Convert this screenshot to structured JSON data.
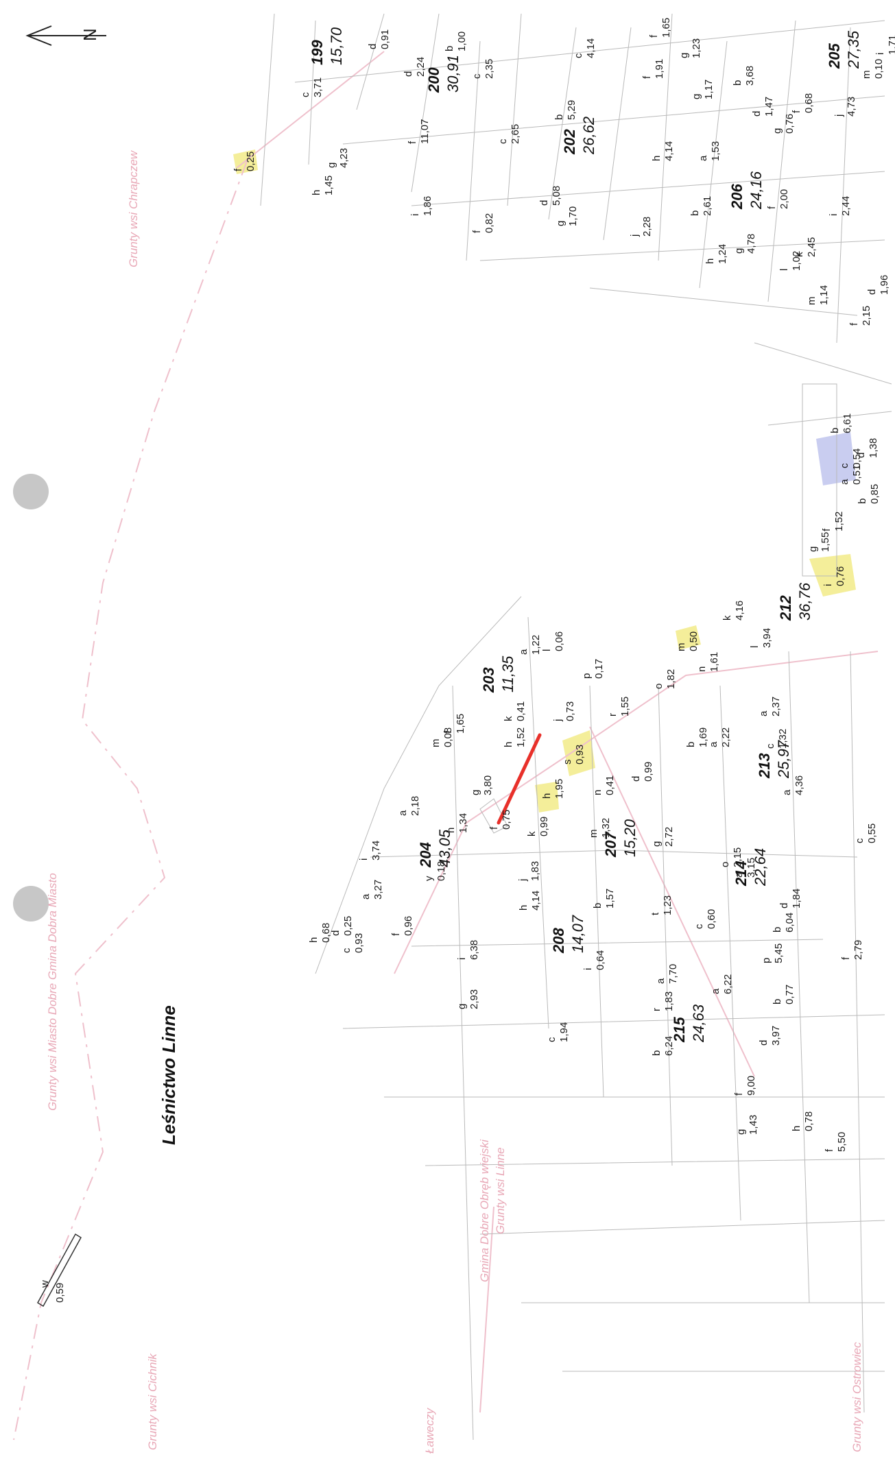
{
  "forestry_label": "Leśnictwo Linne",
  "north_arrow_label": "N",
  "neighbour_labels": [
    "Grunty wsi Chrapczew",
    "Grunty wsi Miasto Dobre   Gmina Dobra Miasto",
    "Gmina Dobre Obręb wiejski",
    "Grunty wsi Linne",
    "Grunty wsi Cichnik",
    "Grunty wsi Ostrowiec",
    "Ławeczy"
  ],
  "scale_bar": {
    "letter": "w",
    "value": "0,59"
  },
  "highlight_color": "#f4ee9a",
  "blue_patch_color": "#c9cdf0",
  "segment_color": "#e8302a",
  "parcels": [
    {
      "number": "199",
      "area": "15,70"
    },
    {
      "number": "200",
      "area": "30,91"
    },
    {
      "number": "202",
      "area": "26,62"
    },
    {
      "number": "203",
      "area": "11,35"
    },
    {
      "number": "204",
      "area": "43,05"
    },
    {
      "number": "205",
      "area": "27,35"
    },
    {
      "number": "206",
      "area": "24,16"
    },
    {
      "number": "207",
      "area": "15,20"
    },
    {
      "number": "208",
      "area": "14,07"
    },
    {
      "number": "212",
      "area": "36,76"
    },
    {
      "number": "213",
      "area": "25,97"
    },
    {
      "number": "214",
      "area": "22,64"
    },
    {
      "number": "215",
      "area": "24,63"
    }
  ],
  "subdivisions": [
    {
      "letter": "c",
      "value": "3,71"
    },
    {
      "letter": "d",
      "value": "0,91"
    },
    {
      "letter": "d",
      "value": "2,24"
    },
    {
      "letter": "b",
      "value": "1,00"
    },
    {
      "letter": "c",
      "value": "2,35"
    },
    {
      "letter": "c",
      "value": "4,14"
    },
    {
      "letter": "f",
      "value": "1,65"
    },
    {
      "letter": "g",
      "value": "1,23"
    },
    {
      "letter": "f",
      "value": "1,91"
    },
    {
      "letter": "g",
      "value": "1,17"
    },
    {
      "letter": "b",
      "value": "3,68"
    },
    {
      "letter": "m",
      "value": "0,10"
    },
    {
      "letter": "i",
      "value": "1,71"
    },
    {
      "letter": "f",
      "value": "11,07"
    },
    {
      "letter": "c",
      "value": "2,65"
    },
    {
      "letter": "b",
      "value": "5,29"
    },
    {
      "letter": "d",
      "value": "1,47"
    },
    {
      "letter": "g",
      "value": "0,76"
    },
    {
      "letter": "f",
      "value": "0,68"
    },
    {
      "letter": "j",
      "value": "4,73"
    },
    {
      "letter": "g",
      "value": "4,23"
    },
    {
      "letter": "f",
      "value": "0,25"
    },
    {
      "letter": "h",
      "value": "1,45"
    },
    {
      "letter": "i",
      "value": "1,86"
    },
    {
      "letter": "d",
      "value": "5,08"
    },
    {
      "letter": "h",
      "value": "4,14"
    },
    {
      "letter": "a",
      "value": "1,53"
    },
    {
      "letter": "f",
      "value": "0,82"
    },
    {
      "letter": "g",
      "value": "1,70"
    },
    {
      "letter": "j",
      "value": "2,28"
    },
    {
      "letter": "b",
      "value": "2,61"
    },
    {
      "letter": "f",
      "value": "2,00"
    },
    {
      "letter": "i",
      "value": "2,44"
    },
    {
      "letter": "h",
      "value": "1,24"
    },
    {
      "letter": "g",
      "value": "4,78"
    },
    {
      "letter": "l",
      "value": "1,02"
    },
    {
      "letter": "k",
      "value": "2,45"
    },
    {
      "letter": "m",
      "value": "1,14"
    },
    {
      "letter": "f",
      "value": "2,15"
    },
    {
      "letter": "d",
      "value": "1,96"
    },
    {
      "letter": "b",
      "value": "6,61"
    },
    {
      "letter": "a",
      "value": "0,51"
    },
    {
      "letter": "c",
      "value": "0,54"
    },
    {
      "letter": "d",
      "value": "1,38"
    },
    {
      "letter": "b",
      "value": "0,85"
    },
    {
      "letter": "g",
      "value": "1,55"
    },
    {
      "letter": "f",
      "value": "1,52"
    },
    {
      "letter": "i",
      "value": "0,76"
    },
    {
      "letter": "k",
      "value": "4,16"
    },
    {
      "letter": "l",
      "value": "3,94"
    },
    {
      "letter": "a",
      "value": "1,22"
    },
    {
      "letter": "l",
      "value": "0,06"
    },
    {
      "letter": "m",
      "value": "0,50"
    },
    {
      "letter": "n",
      "value": "1,61"
    },
    {
      "letter": "o",
      "value": "1,82"
    },
    {
      "letter": "p",
      "value": "0,17"
    },
    {
      "letter": "k",
      "value": "0,41"
    },
    {
      "letter": "r",
      "value": "1,55"
    },
    {
      "letter": "m",
      "value": "0,08"
    },
    {
      "letter": "f",
      "value": "1,65"
    },
    {
      "letter": "h",
      "value": "1,52"
    },
    {
      "letter": "j",
      "value": "0,73"
    },
    {
      "letter": "b",
      "value": "1,69"
    },
    {
      "letter": "a",
      "value": "2,22"
    },
    {
      "letter": "a",
      "value": "2,37"
    },
    {
      "letter": "c",
      "value": "1,32"
    },
    {
      "letter": "a",
      "value": "2,18"
    },
    {
      "letter": "g",
      "value": "3,80"
    },
    {
      "letter": "s",
      "value": "0,93"
    },
    {
      "letter": "d",
      "value": "0,99"
    },
    {
      "letter": "a",
      "value": "4,36"
    },
    {
      "letter": "h",
      "value": "1,34"
    },
    {
      "letter": "h",
      "value": "1,95"
    },
    {
      "letter": "k",
      "value": "0,99"
    },
    {
      "letter": "n",
      "value": "0,41"
    },
    {
      "letter": "f",
      "value": "0,75"
    },
    {
      "letter": "m",
      "value": "1,32"
    },
    {
      "letter": "g",
      "value": "2,72"
    },
    {
      "letter": "c",
      "value": "0,55"
    },
    {
      "letter": "i",
      "value": "3,74"
    },
    {
      "letter": "y",
      "value": "0,18"
    },
    {
      "letter": "j",
      "value": "1,83"
    },
    {
      "letter": "o",
      "value": "2,15"
    },
    {
      "letter": "a",
      "value": "3,15"
    },
    {
      "letter": "a",
      "value": "3,27"
    },
    {
      "letter": "b",
      "value": "1,57"
    },
    {
      "letter": "h",
      "value": "4,14"
    },
    {
      "letter": "t",
      "value": "1,23"
    },
    {
      "letter": "c",
      "value": "0,60"
    },
    {
      "letter": "b",
      "value": "6,04"
    },
    {
      "letter": "d",
      "value": "1,84"
    },
    {
      "letter": "h",
      "value": "0,68"
    },
    {
      "letter": "d",
      "value": "0,25"
    },
    {
      "letter": "c",
      "value": "0,93"
    },
    {
      "letter": "f",
      "value": "0,96"
    },
    {
      "letter": "i",
      "value": "6,38"
    },
    {
      "letter": "p",
      "value": "5,45"
    },
    {
      "letter": "f",
      "value": "2,79"
    },
    {
      "letter": "i",
      "value": "0,64"
    },
    {
      "letter": "a",
      "value": "7,70"
    },
    {
      "letter": "a",
      "value": "6,22"
    },
    {
      "letter": "b",
      "value": "0,77"
    },
    {
      "letter": "g",
      "value": "2,93"
    },
    {
      "letter": "r",
      "value": "1,83"
    },
    {
      "letter": "c",
      "value": "1,94"
    },
    {
      "letter": "b",
      "value": "6,24"
    },
    {
      "letter": "d",
      "value": "3,97"
    },
    {
      "letter": "f",
      "value": "9,00"
    },
    {
      "letter": "g",
      "value": "1,43"
    },
    {
      "letter": "h",
      "value": "0,78"
    },
    {
      "letter": "f",
      "value": "5,50"
    }
  ]
}
